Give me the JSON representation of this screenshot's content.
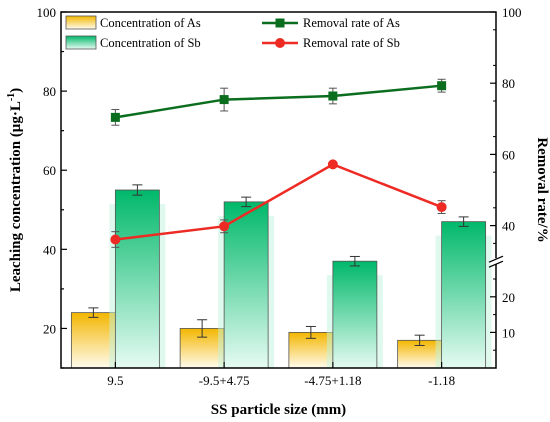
{
  "chart_data": {
    "type": "bar",
    "categories": [
      "9.5",
      "-9.5+4.75",
      "-4.75+1.18",
      "-1.18"
    ],
    "xlabel": "SS particle size (mm)",
    "ylabel": "Leaching concentration (μg·L",
    "ylabel_sup": "-1",
    "ylabel_close": ")",
    "y2label": "Removal rate/%",
    "ylim": [
      10,
      100
    ],
    "y2lim": [
      0,
      100
    ],
    "y_ticks": [
      "20",
      "40",
      "60",
      "80",
      "100"
    ],
    "y2_ticks": [
      "10",
      "20",
      "40",
      "60",
      "80",
      "100"
    ],
    "bar_series": [
      {
        "name": "Concentration of As",
        "values": [
          24,
          20,
          19,
          17
        ],
        "errors": [
          1.2,
          2.2,
          1.5,
          1.3
        ],
        "color": "#f5b800"
      },
      {
        "name": "Concentration of Sb",
        "values": [
          55,
          52,
          37,
          47
        ],
        "errors": [
          1.3,
          1.2,
          1.2,
          1.2
        ],
        "color": "#00b86a"
      }
    ],
    "line_series": [
      {
        "name": "Removal rate of As",
        "values": [
          70.4,
          75.4,
          76.4,
          79.3
        ],
        "errors": [
          2.2,
          3.2,
          2.2,
          1.8
        ],
        "color": "#0b6e1f",
        "marker": "square"
      },
      {
        "name": "Removal rate of Sb",
        "values": [
          36.1,
          39.8,
          57.2,
          45.2
        ],
        "errors": [
          2.2,
          1.8,
          0.0,
          1.8
        ],
        "color": "#ee2a24",
        "marker": "circle"
      }
    ],
    "legend_position": "top",
    "grid": false
  }
}
